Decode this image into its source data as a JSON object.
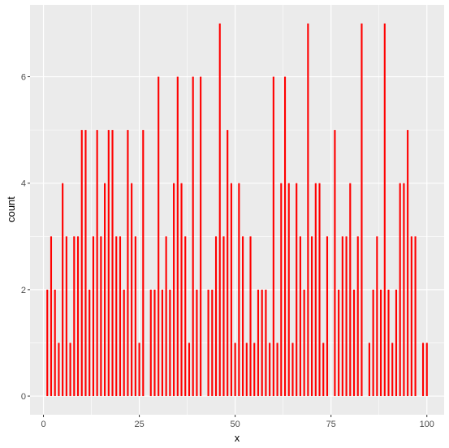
{
  "chart_data": {
    "type": "bar",
    "xlabel": "x",
    "ylabel": "count",
    "xlim": [
      -3.5,
      104.5
    ],
    "ylim": [
      -0.35,
      7.35
    ],
    "x_ticks": [
      0,
      25,
      50,
      75,
      100
    ],
    "y_ticks": [
      0,
      2,
      4,
      6
    ],
    "grid": true,
    "panel_background": "#ebebeb",
    "grid_color": "#ffffff",
    "bar_color": "#ff0000",
    "bar_width": 0.45,
    "x": [
      1,
      2,
      3,
      4,
      5,
      6,
      7,
      8,
      9,
      10,
      11,
      12,
      13,
      14,
      15,
      16,
      17,
      18,
      19,
      20,
      21,
      22,
      23,
      24,
      25,
      26,
      27,
      28,
      29,
      30,
      31,
      32,
      33,
      34,
      35,
      36,
      37,
      38,
      39,
      40,
      41,
      42,
      43,
      44,
      45,
      46,
      47,
      48,
      49,
      50,
      51,
      52,
      53,
      54,
      55,
      56,
      57,
      58,
      59,
      60,
      61,
      62,
      63,
      64,
      65,
      66,
      67,
      68,
      69,
      70,
      71,
      72,
      73,
      74,
      75,
      76,
      77,
      78,
      79,
      80,
      81,
      82,
      83,
      84,
      85,
      86,
      87,
      88,
      89,
      90,
      91,
      92,
      93,
      94,
      95,
      96,
      97,
      98,
      99,
      100
    ],
    "values": [
      2,
      3,
      2,
      1,
      4,
      3,
      1,
      3,
      3,
      5,
      5,
      2,
      3,
      5,
      3,
      4,
      5,
      5,
      3,
      3,
      2,
      5,
      4,
      3,
      1,
      5,
      0,
      2,
      2,
      6,
      2,
      3,
      2,
      4,
      6,
      4,
      3,
      1,
      6,
      2,
      6,
      0,
      2,
      2,
      3,
      7,
      3,
      5,
      4,
      1,
      4,
      3,
      1,
      3,
      1,
      2,
      2,
      2,
      1,
      6,
      1,
      4,
      6,
      4,
      1,
      4,
      3,
      2,
      7,
      3,
      4,
      4,
      1,
      3,
      0,
      5,
      2,
      3,
      3,
      4,
      2,
      3,
      7,
      0,
      1,
      2,
      3,
      2,
      7,
      2,
      1,
      2,
      4,
      4,
      5,
      3,
      3,
      0,
      1,
      1
    ]
  }
}
